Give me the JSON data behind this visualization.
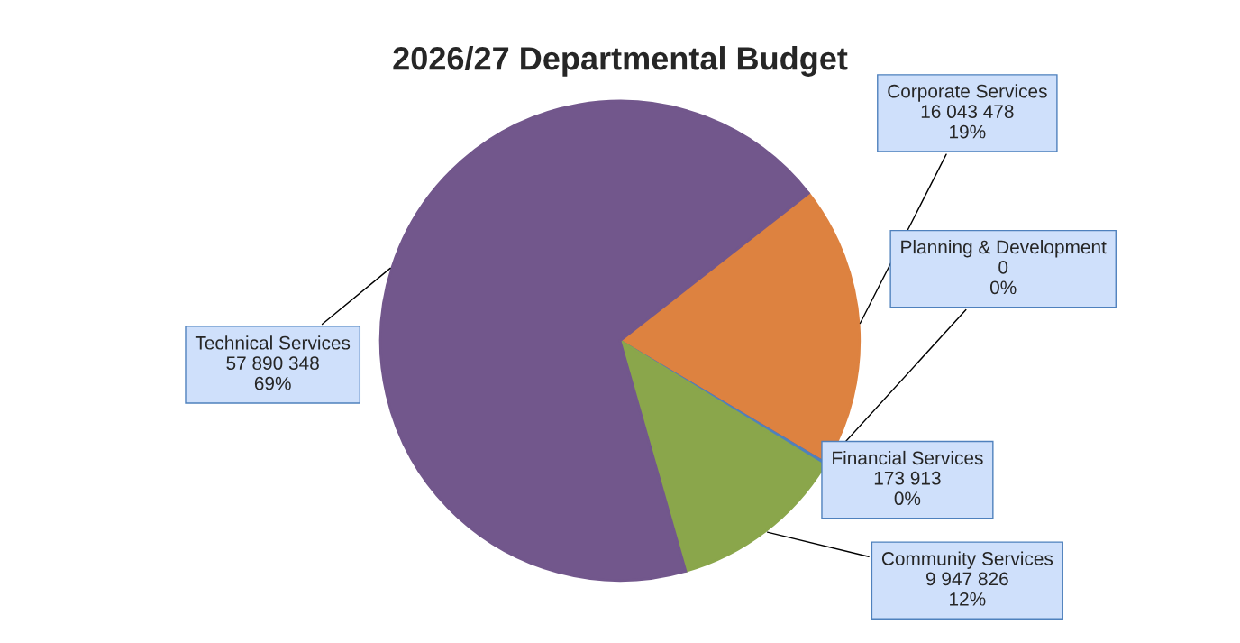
{
  "chart_data": {
    "type": "pie",
    "title": "2026/27 Departmental Budget",
    "categories": [
      "Corporate Services",
      "Planning & Development",
      "Financial Services",
      "Community Services",
      "Technical Services"
    ],
    "values": [
      16043478,
      0,
      173913,
      9947826,
      57890348
    ],
    "value_labels": [
      "16 043 478\n19%",
      "0\n0%",
      "173 913\n0%",
      "9 947 826\n12%",
      "57 890 348\n69%"
    ],
    "colors": [
      "#dd8240",
      "#c0504d",
      "#4f81bd",
      "#8aa64b",
      "#72578c"
    ],
    "legend": false
  }
}
